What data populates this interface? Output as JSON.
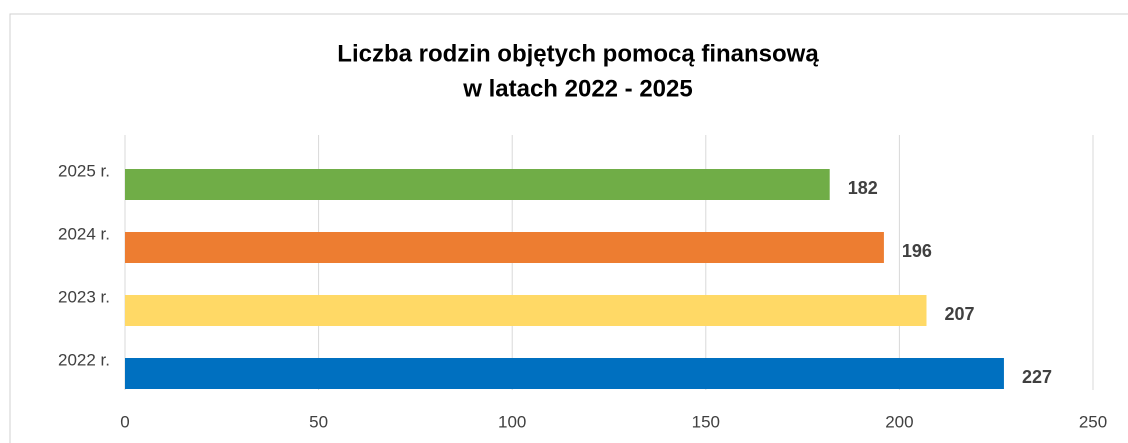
{
  "chart_data": {
    "type": "hbar",
    "title": [
      "Liczba rodzin objętych pomocą finansową",
      "w latach 2022 - 2025"
    ],
    "categories": [
      "2025 r.",
      "2024 r.",
      "2023 r.",
      "2022 r."
    ],
    "values": [
      182,
      196,
      207,
      227
    ],
    "colors": [
      "#70ad47",
      "#ed7d31",
      "#ffd966",
      "#0070c0"
    ],
    "xlim": [
      0,
      250
    ],
    "xticks": [
      0,
      50,
      100,
      150,
      200,
      250
    ],
    "grid": true
  }
}
